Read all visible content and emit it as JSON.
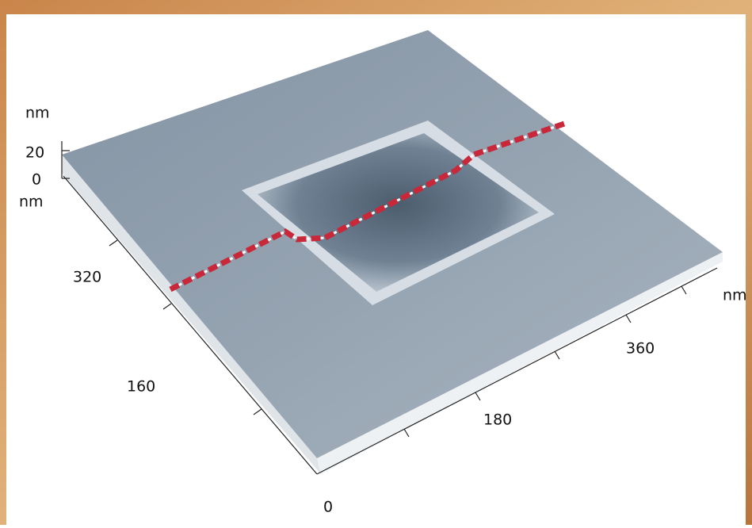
{
  "z_axis": {
    "unit": "nm",
    "ticks": [
      "20",
      "0"
    ]
  },
  "y_axis": {
    "unit": "nm",
    "ticks": [
      "320",
      "160"
    ]
  },
  "x_axis": {
    "unit": "nm",
    "ticks": [
      "0",
      "180",
      "360"
    ]
  }
}
